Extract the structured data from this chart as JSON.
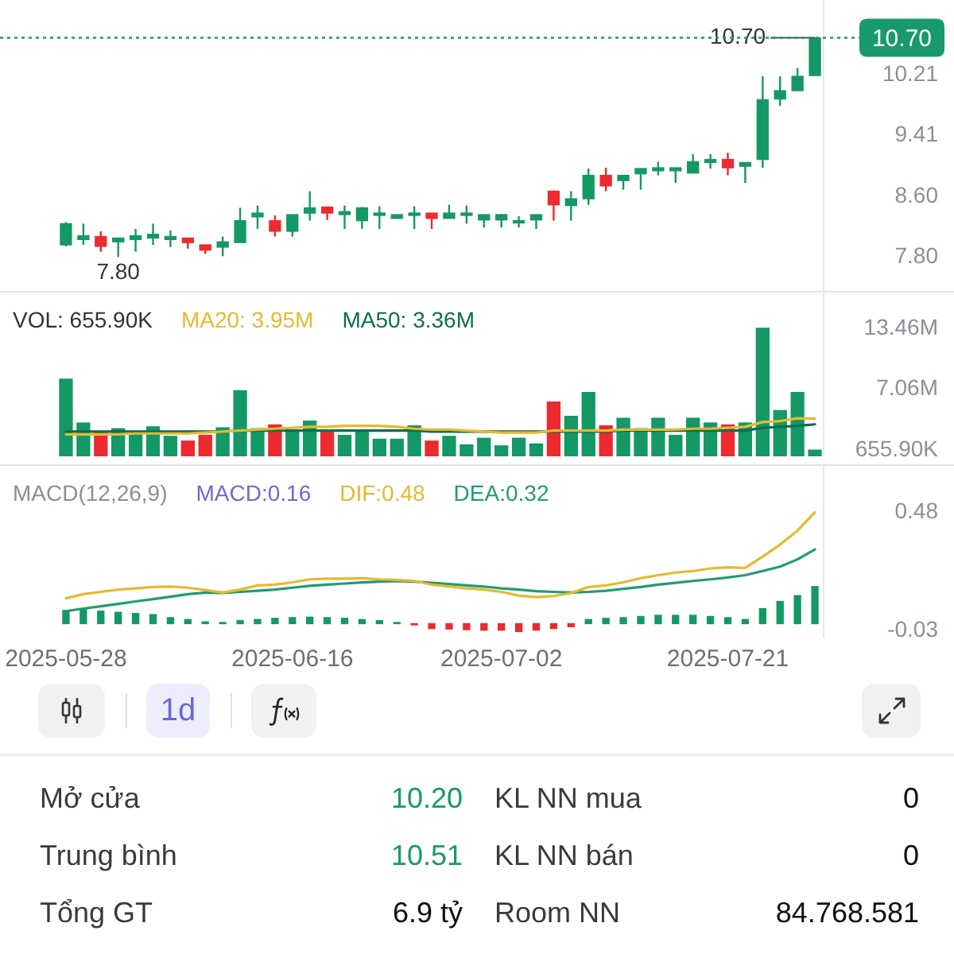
{
  "chart_data": [
    {
      "type": "candlestick",
      "categories": [
        "2025-05-28",
        null,
        null,
        null,
        null,
        null,
        null,
        null,
        null,
        null,
        null,
        null,
        null,
        "2025-06-16",
        null,
        null,
        null,
        null,
        null,
        null,
        null,
        null,
        null,
        null,
        null,
        "2025-07-02",
        null,
        null,
        null,
        null,
        null,
        null,
        null,
        null,
        null,
        null,
        null,
        null,
        "2025-07-21",
        null,
        null,
        null,
        null,
        null
      ],
      "ohlc": [
        [
          7.96,
          8.26,
          7.94,
          8.24
        ],
        [
          8.03,
          8.24,
          7.96,
          8.08
        ],
        [
          8.07,
          8.14,
          7.87,
          7.94
        ],
        [
          8.0,
          8.05,
          7.8,
          8.05
        ],
        [
          8.03,
          8.17,
          7.87,
          8.08
        ],
        [
          8.05,
          8.24,
          7.96,
          8.1
        ],
        [
          8.03,
          8.15,
          7.93,
          8.07
        ],
        [
          8.05,
          8.05,
          7.91,
          7.99
        ],
        [
          7.96,
          7.96,
          7.84,
          7.89
        ],
        [
          7.93,
          8.07,
          7.81,
          8.0
        ],
        [
          7.99,
          8.45,
          7.99,
          8.28
        ],
        [
          8.33,
          8.48,
          8.17,
          8.38
        ],
        [
          8.28,
          8.35,
          8.07,
          8.14
        ],
        [
          8.14,
          8.36,
          8.07,
          8.36
        ],
        [
          8.38,
          8.67,
          8.28,
          8.45
        ],
        [
          8.46,
          8.46,
          8.29,
          8.38
        ],
        [
          8.36,
          8.48,
          8.17,
          8.4
        ],
        [
          8.28,
          8.46,
          8.17,
          8.45
        ],
        [
          8.35,
          8.47,
          8.17,
          8.38
        ],
        [
          8.31,
          8.36,
          8.31,
          8.36
        ],
        [
          8.35,
          8.47,
          8.17,
          8.38
        ],
        [
          8.38,
          8.38,
          8.17,
          8.31
        ],
        [
          8.31,
          8.49,
          8.31,
          8.38
        ],
        [
          8.35,
          8.48,
          8.24,
          8.38
        ],
        [
          8.29,
          8.36,
          8.19,
          8.36
        ],
        [
          8.29,
          8.37,
          8.19,
          8.36
        ],
        [
          8.25,
          8.34,
          8.19,
          8.27
        ],
        [
          8.29,
          8.36,
          8.17,
          8.36
        ],
        [
          8.67,
          8.68,
          8.28,
          8.49
        ],
        [
          8.48,
          8.67,
          8.28,
          8.57
        ],
        [
          8.57,
          8.97,
          8.49,
          8.88
        ],
        [
          8.88,
          8.98,
          8.67,
          8.74
        ],
        [
          8.81,
          8.88,
          8.69,
          8.88
        ],
        [
          8.9,
          8.97,
          8.69,
          8.97
        ],
        [
          8.94,
          9.06,
          8.88,
          8.98
        ],
        [
          8.94,
          8.98,
          8.78,
          8.98
        ],
        [
          8.91,
          9.16,
          8.91,
          9.06
        ],
        [
          9.05,
          9.16,
          8.97,
          9.09
        ],
        [
          9.09,
          9.18,
          8.88,
          8.98
        ],
        [
          9.0,
          9.05,
          8.78,
          9.05
        ],
        [
          9.09,
          10.19,
          8.98,
          9.88
        ],
        [
          9.89,
          10.19,
          9.8,
          10.0
        ],
        [
          10.0,
          10.3,
          10.0,
          10.19
        ],
        [
          10.2,
          10.7,
          10.2,
          10.7
        ]
      ],
      "colors": [
        "#149865",
        "#149865",
        "#ec2a2f",
        "#149865",
        "#149865",
        "#149865",
        "#149865",
        "#ec2a2f",
        "#ec2a2f",
        "#149865",
        "#149865",
        "#149865",
        "#ec2a2f",
        "#149865",
        "#149865",
        "#ec2a2f",
        "#149865",
        "#149865",
        "#149865",
        "#149865",
        "#149865",
        "#ec2a2f",
        "#149865",
        "#149865",
        "#149865",
        "#149865",
        "#149865",
        "#149865",
        "#ec2a2f",
        "#149865",
        "#149865",
        "#ec2a2f",
        "#149865",
        "#149865",
        "#149865",
        "#149865",
        "#149865",
        "#149865",
        "#ec2a2f",
        "#149865",
        "#149865",
        "#149865",
        "#149865",
        "#149865"
      ],
      "ylim": [
        7.35,
        11.2
      ],
      "yticks": [
        {
          "value": 7.8,
          "label": "7.80"
        },
        {
          "value": 8.6,
          "label": "8.60"
        },
        9.41,
        10.21
      ],
      "tick_labels": "y",
      "ref_lines": [
        {
          "axis": "y",
          "value": 10.7,
          "label": "10.70",
          "color": "#1a9a6c",
          "line_style": "dotted"
        }
      ],
      "annotations": [
        {
          "text": "10.70",
          "y": 10.7
        },
        {
          "text": "7.80",
          "y": 7.8
        }
      ]
    },
    {
      "type": "bar",
      "categories": [
        "2025-05-28",
        null,
        null,
        null,
        null,
        null,
        null,
        null,
        null,
        null,
        null,
        null,
        null,
        "2025-06-16",
        null,
        null,
        null,
        null,
        null,
        null,
        null,
        null,
        null,
        null,
        null,
        "2025-07-02",
        null,
        null,
        null,
        null,
        null,
        null,
        null,
        null,
        null,
        null,
        null,
        null,
        "2025-07-21",
        null,
        null,
        null,
        null,
        null
      ],
      "series": [
        {
          "name": "VOL: 655.90K",
          "colors": [
            "#149865",
            "#149865",
            "#ec2a2f",
            "#149865",
            "#149865",
            "#149865",
            "#149865",
            "#ec2a2f",
            "#ec2a2f",
            "#149865",
            "#149865",
            "#149865",
            "#ec2a2f",
            "#149865",
            "#149865",
            "#ec2a2f",
            "#149865",
            "#149865",
            "#149865",
            "#149865",
            "#149865",
            "#ec2a2f",
            "#149865",
            "#149865",
            "#149865",
            "#149865",
            "#149865",
            "#149865",
            "#ec2a2f",
            "#149865",
            "#149865",
            "#ec2a2f",
            "#149865",
            "#149865",
            "#149865",
            "#149865",
            "#149865",
            "#149865",
            "#ec2a2f",
            "#149865",
            "#149865",
            "#149865",
            "#149865",
            "#149865"
          ],
          "values": [
            8100000,
            3500000,
            2600000,
            2900000,
            2600000,
            3100000,
            2100000,
            1600000,
            2200000,
            3000000,
            6900000,
            2900000,
            3300000,
            2600000,
            3700000,
            2600000,
            2200000,
            2600000,
            1800000,
            1800000,
            3200000,
            1600000,
            2100000,
            1200000,
            1900000,
            1100000,
            1900000,
            1300000,
            5700000,
            4200000,
            6700000,
            3200000,
            4000000,
            2900000,
            4000000,
            2200000,
            4000000,
            3500000,
            3300000,
            3500000,
            13460000,
            4800000,
            6700000,
            655900
          ]
        },
        {
          "name": "MA20: 3.95M",
          "type": "line",
          "color": "#e6b92f",
          "values": [
            2300000,
            2300000,
            2300000,
            2300000,
            2400000,
            2400000,
            2400000,
            2400000,
            2500000,
            2600000,
            2700000,
            2800000,
            2900000,
            3000000,
            3100000,
            3100000,
            3200000,
            3200000,
            3200000,
            3100000,
            2900000,
            2800000,
            2800000,
            2700000,
            2600000,
            2500000,
            2500000,
            2500000,
            2700000,
            2700000,
            2700000,
            2700000,
            2800000,
            2800000,
            2800000,
            2800000,
            2900000,
            2900000,
            3000000,
            3100000,
            3600000,
            3700000,
            4000000,
            3950000
          ]
        },
        {
          "name": "MA50: 3.36M",
          "type": "line",
          "color": "#0b6e52",
          "values": [
            2600000,
            2600000,
            2600000,
            2600000,
            2600000,
            2600000,
            2600000,
            2600000,
            2600000,
            2600000,
            2700000,
            2700000,
            2700000,
            2700000,
            2700000,
            2700000,
            2700000,
            2700000,
            2700000,
            2700000,
            2700000,
            2600000,
            2600000,
            2600000,
            2600000,
            2600000,
            2600000,
            2600000,
            2600000,
            2600000,
            2600000,
            2600000,
            2700000,
            2700000,
            2700000,
            2700000,
            2700000,
            2700000,
            2700000,
            2700000,
            3000000,
            3100000,
            3200000,
            3360000
          ]
        }
      ],
      "ylim": [
        0,
        17200000
      ],
      "yticks": [
        {
          "value": 655900,
          "label": "655.90K"
        },
        {
          "value": 7060000,
          "label": "7.06M"
        },
        {
          "value": 13460000,
          "label": "13.46M"
        }
      ],
      "tick_labels": "y",
      "legend": "top left"
    },
    {
      "type": "bar",
      "categories": [
        "2025-05-28",
        null,
        null,
        null,
        null,
        null,
        null,
        null,
        null,
        null,
        null,
        null,
        null,
        "2025-06-16",
        null,
        null,
        null,
        null,
        null,
        null,
        null,
        null,
        null,
        null,
        null,
        "2025-07-02",
        null,
        null,
        null,
        null,
        null,
        null,
        null,
        null,
        null,
        null,
        null,
        null,
        "2025-07-21",
        null,
        null,
        null,
        null,
        null
      ],
      "legend_title": "MACD(12,26,9)",
      "annotations": [
        "MACD:0.16"
      ],
      "series": [
        {
          "colors": [
            "#149865",
            "#149865",
            "#149865",
            "#149865",
            "#149865",
            "#149865",
            "#149865",
            "#149865",
            "#149865",
            "#149865",
            "#149865",
            "#149865",
            "#149865",
            "#149865",
            "#149865",
            "#149865",
            "#149865",
            "#149865",
            "#149865",
            "#149865",
            "#ec2a2f",
            "#ec2a2f",
            "#ec2a2f",
            "#ec2a2f",
            "#ec2a2f",
            "#ec2a2f",
            "#ec2a2f",
            "#ec2a2f",
            "#ec2a2f",
            "#ec2a2f",
            "#149865",
            "#149865",
            "#149865",
            "#149865",
            "#149865",
            "#149865",
            "#149865",
            "#149865",
            "#149865",
            "#149865",
            "#149865",
            "#149865",
            "#149865",
            "#149865"
          ],
          "values": [
            0.057,
            0.062,
            0.054,
            0.049,
            0.044,
            0.039,
            0.026,
            0.018,
            0.008,
            0.005,
            0.013,
            0.018,
            0.023,
            0.026,
            0.028,
            0.026,
            0.023,
            0.018,
            0.013,
            0.005,
            -0.005,
            -0.021,
            -0.023,
            -0.026,
            -0.028,
            -0.028,
            -0.034,
            -0.028,
            -0.021,
            -0.013,
            0.018,
            0.023,
            0.026,
            0.031,
            0.036,
            0.036,
            0.036,
            0.031,
            0.026,
            0.018,
            0.065,
            0.096,
            0.121,
            0.16
          ]
        },
        {
          "name": "DIF:0.48",
          "type": "line",
          "color": "#e6b92f",
          "values": [
            0.109,
            0.127,
            0.137,
            0.147,
            0.152,
            0.158,
            0.16,
            0.155,
            0.145,
            0.134,
            0.147,
            0.165,
            0.168,
            0.178,
            0.191,
            0.194,
            0.194,
            0.196,
            0.191,
            0.189,
            0.184,
            0.168,
            0.16,
            0.152,
            0.147,
            0.137,
            0.121,
            0.114,
            0.119,
            0.132,
            0.158,
            0.165,
            0.178,
            0.196,
            0.209,
            0.22,
            0.227,
            0.238,
            0.243,
            0.24,
            0.289,
            0.341,
            0.401,
            0.48
          ]
        },
        {
          "name": "DEA:0.32",
          "type": "line",
          "color": "#1f9c73",
          "values": [
            0.054,
            0.065,
            0.075,
            0.085,
            0.096,
            0.106,
            0.116,
            0.127,
            0.134,
            0.132,
            0.137,
            0.142,
            0.147,
            0.155,
            0.163,
            0.168,
            0.173,
            0.178,
            0.181,
            0.184,
            0.181,
            0.176,
            0.171,
            0.165,
            0.16,
            0.152,
            0.147,
            0.14,
            0.137,
            0.134,
            0.137,
            0.142,
            0.15,
            0.158,
            0.168,
            0.176,
            0.184,
            0.191,
            0.199,
            0.209,
            0.227,
            0.246,
            0.277,
            0.32
          ]
        }
      ],
      "ylim": [
        -0.06,
        0.68
      ],
      "yticks": [
        0.48,
        -0.03
      ],
      "legend": "top left"
    },
    {
      "type": "other",
      "annotations": [
        "1d",
        "Mở cửa",
        "10.20",
        "KL NN mua",
        "0",
        "Trung bình",
        "10.51",
        "KL NN bán",
        "0",
        "Tổng GT",
        "6.9 tỷ",
        "Room NN",
        "84.768.581"
      ]
    }
  ]
}
